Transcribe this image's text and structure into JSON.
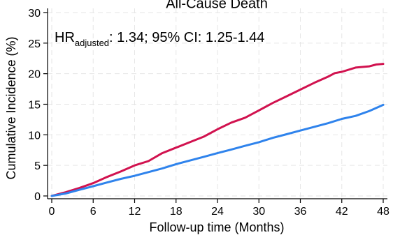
{
  "chart_data": {
    "type": "line",
    "title": "All-Cause Death",
    "xlabel": "Follow-up time (Months)",
    "ylabel": "Cumulative Incidence (%)",
    "xlim": [
      0,
      48
    ],
    "ylim": [
      0,
      30
    ],
    "x_ticks": [
      0,
      6,
      12,
      18,
      24,
      30,
      36,
      42,
      48
    ],
    "y_ticks": [
      0,
      5,
      10,
      15,
      20,
      25,
      30
    ],
    "grid": true,
    "annotation": {
      "hr_prefix": "HR",
      "hr_subscript": "adjusted",
      "hr_rest": ": 1.34; 95% CI: 1.25-1.44"
    },
    "series": [
      {
        "color": "#d1124f",
        "x": [
          0,
          2,
          4,
          6,
          8,
          10,
          12,
          14,
          16,
          18,
          20,
          22,
          24,
          26,
          28,
          30,
          32,
          34,
          36,
          38,
          40,
          41,
          42,
          44,
          46,
          47,
          48
        ],
        "y": [
          0,
          0.6,
          1.3,
          2.1,
          3.1,
          4.0,
          5.0,
          5.7,
          7.0,
          7.9,
          8.8,
          9.7,
          10.9,
          12.0,
          12.8,
          14.0,
          15.2,
          16.3,
          17.4,
          18.5,
          19.5,
          20.1,
          20.3,
          21.0,
          21.2,
          21.5,
          21.6
        ]
      },
      {
        "color": "#2f83ec",
        "x": [
          0,
          2,
          4,
          6,
          8,
          10,
          12,
          14,
          16,
          18,
          20,
          22,
          24,
          26,
          28,
          30,
          32,
          34,
          36,
          38,
          40,
          42,
          44,
          46,
          48
        ],
        "y": [
          0,
          0.4,
          1.0,
          1.6,
          2.2,
          2.8,
          3.3,
          3.9,
          4.5,
          5.2,
          5.8,
          6.4,
          7.0,
          7.6,
          8.2,
          8.8,
          9.5,
          10.1,
          10.7,
          11.3,
          11.9,
          12.6,
          13.1,
          13.9,
          14.9
        ]
      }
    ]
  }
}
